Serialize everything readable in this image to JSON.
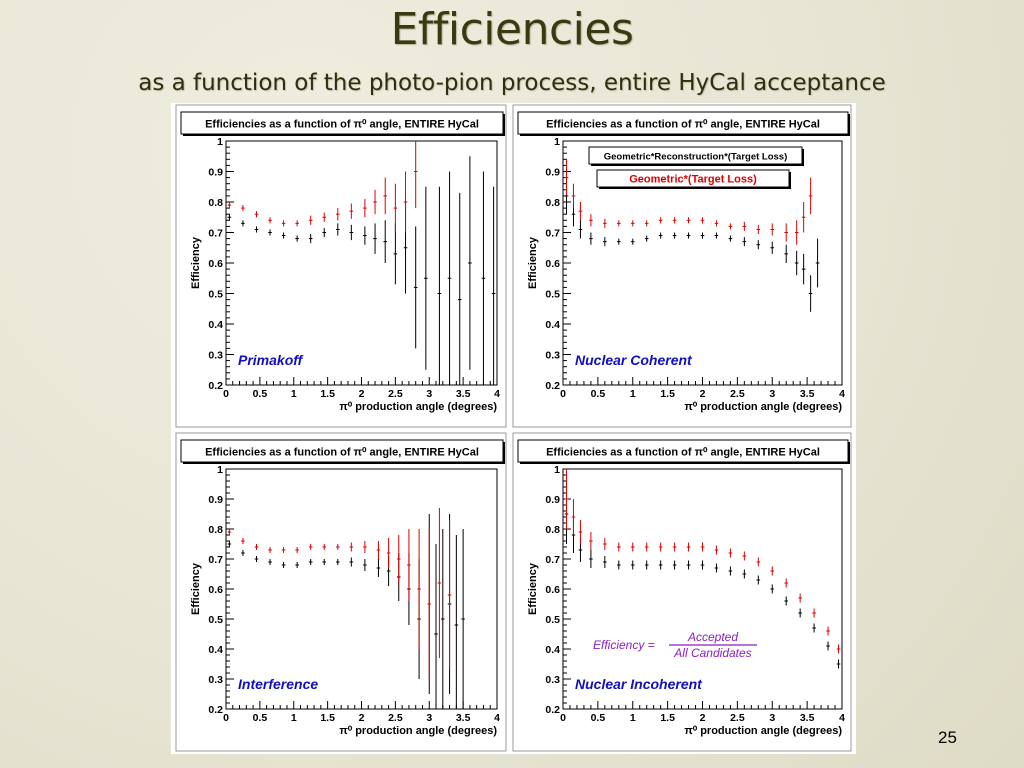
{
  "slide": {
    "title": "Efficiencies",
    "subtitle": "as a function of the photo-pion process, entire HyCal acceptance",
    "page_number": "25"
  },
  "colors": {
    "title_text": "#3a3a12",
    "background": "#e9e7d6",
    "series_black": "#000000",
    "series_red": "#e00000",
    "label_blue": "#1010c0",
    "formula_purple": "#8b1fc8"
  },
  "chart_data": [
    {
      "type": "scatter",
      "panel_title": "Efficiencies as a function of π⁰ angle, ENTIRE HyCal",
      "xlabel": "π⁰ production angle (degrees)",
      "ylabel": "Efficiency",
      "xlim": [
        0,
        4
      ],
      "ylim": [
        0.2,
        1
      ],
      "xticks": [
        "0",
        "0.5",
        "1",
        "1.5",
        "2",
        "2.5",
        "3",
        "3.5",
        "4"
      ],
      "yticks": [
        "0.2",
        "0.3",
        "0.4",
        "0.5",
        "0.6",
        "0.7",
        "0.8",
        "0.9",
        "1"
      ],
      "annotation": "Primakoff",
      "error_bars": true,
      "series": [
        {
          "color": "#000000",
          "x": [
            0.05,
            0.25,
            0.45,
            0.65,
            0.85,
            1.05,
            1.25,
            1.45,
            1.65,
            1.85,
            2.05,
            2.2,
            2.35,
            2.5,
            2.65,
            2.8,
            2.95,
            3.15,
            3.3,
            3.45,
            3.6,
            3.8,
            3.95
          ],
          "y": [
            0.75,
            0.73,
            0.71,
            0.7,
            0.69,
            0.68,
            0.68,
            0.7,
            0.71,
            0.7,
            0.69,
            0.68,
            0.67,
            0.63,
            0.65,
            0.52,
            0.55,
            0.5,
            0.55,
            0.48,
            0.6,
            0.55,
            0.5
          ],
          "err": [
            0.01,
            0.01,
            0.01,
            0.01,
            0.01,
            0.01,
            0.015,
            0.015,
            0.02,
            0.025,
            0.03,
            0.05,
            0.07,
            0.1,
            0.15,
            0.2,
            0.3,
            0.35,
            0.35,
            0.35,
            0.35,
            0.35,
            0.35
          ]
        },
        {
          "color": "#e00000",
          "x": [
            0.05,
            0.25,
            0.45,
            0.65,
            0.85,
            1.05,
            1.25,
            1.45,
            1.65,
            1.85,
            2.05,
            2.2,
            2.35,
            2.5,
            2.65,
            2.8
          ],
          "y": [
            0.79,
            0.78,
            0.76,
            0.74,
            0.73,
            0.73,
            0.74,
            0.75,
            0.76,
            0.77,
            0.78,
            0.8,
            0.82,
            0.78,
            0.8,
            0.9
          ],
          "err": [
            0.01,
            0.01,
            0.01,
            0.01,
            0.01,
            0.01,
            0.015,
            0.015,
            0.02,
            0.025,
            0.03,
            0.04,
            0.06,
            0.08,
            0.1,
            0.12
          ]
        }
      ]
    },
    {
      "type": "scatter",
      "panel_title": "Efficiencies as a function of π⁰ angle, ENTIRE HyCal",
      "xlabel": "π⁰ production angle (degrees)",
      "ylabel": "Efficiency",
      "xlim": [
        0,
        4
      ],
      "ylim": [
        0.2,
        1
      ],
      "xticks": [
        "0",
        "0.5",
        "1",
        "1.5",
        "2",
        "2.5",
        "3",
        "3.5",
        "4"
      ],
      "yticks": [
        "0.2",
        "0.3",
        "0.4",
        "0.5",
        "0.6",
        "0.7",
        "0.8",
        "0.9",
        "1"
      ],
      "annotation": "Nuclear Coherent",
      "error_bars": true,
      "legend": [
        "Geometric*Reconstruction*(Target Loss)",
        "Geometric*(Target Loss)"
      ],
      "series": [
        {
          "name": "Geometric*Reconstruction*(Target Loss)",
          "color": "#000000",
          "x": [
            0.05,
            0.15,
            0.25,
            0.4,
            0.6,
            0.8,
            1.0,
            1.2,
            1.4,
            1.6,
            1.8,
            2.0,
            2.2,
            2.4,
            2.6,
            2.8,
            3.0,
            3.2,
            3.35,
            3.45,
            3.55,
            3.65
          ],
          "y": [
            0.82,
            0.76,
            0.71,
            0.68,
            0.67,
            0.67,
            0.67,
            0.68,
            0.69,
            0.69,
            0.69,
            0.69,
            0.69,
            0.68,
            0.67,
            0.66,
            0.65,
            0.63,
            0.6,
            0.58,
            0.5,
            0.6
          ],
          "err": [
            0.06,
            0.04,
            0.03,
            0.02,
            0.015,
            0.01,
            0.01,
            0.01,
            0.01,
            0.01,
            0.01,
            0.01,
            0.01,
            0.01,
            0.015,
            0.015,
            0.02,
            0.03,
            0.04,
            0.05,
            0.06,
            0.08
          ]
        },
        {
          "name": "Geometric*(Target Loss)",
          "color": "#e00000",
          "x": [
            0.05,
            0.15,
            0.25,
            0.4,
            0.6,
            0.8,
            1.0,
            1.2,
            1.4,
            1.6,
            1.8,
            2.0,
            2.2,
            2.4,
            2.6,
            2.8,
            3.0,
            3.2,
            3.35,
            3.45,
            3.55
          ],
          "y": [
            0.88,
            0.82,
            0.77,
            0.74,
            0.73,
            0.73,
            0.73,
            0.73,
            0.74,
            0.74,
            0.74,
            0.74,
            0.73,
            0.72,
            0.72,
            0.71,
            0.71,
            0.7,
            0.7,
            0.75,
            0.82
          ],
          "err": [
            0.06,
            0.04,
            0.03,
            0.02,
            0.015,
            0.01,
            0.01,
            0.01,
            0.01,
            0.01,
            0.01,
            0.01,
            0.01,
            0.01,
            0.015,
            0.015,
            0.02,
            0.03,
            0.04,
            0.05,
            0.06
          ]
        }
      ]
    },
    {
      "type": "scatter",
      "panel_title": "Efficiencies as a function of π⁰ angle, ENTIRE HyCal",
      "xlabel": "π⁰ production angle (degrees)",
      "ylabel": "Efficiency",
      "xlim": [
        0,
        4
      ],
      "ylim": [
        0.2,
        1
      ],
      "xticks": [
        "0",
        "0.5",
        "1",
        "1.5",
        "2",
        "2.5",
        "3",
        "3.5",
        "4"
      ],
      "yticks": [
        "0.2",
        "0.3",
        "0.4",
        "0.5",
        "0.6",
        "0.7",
        "0.8",
        "0.9",
        "1"
      ],
      "annotation": "Interference",
      "error_bars": true,
      "series": [
        {
          "color": "#000000",
          "x": [
            0.05,
            0.25,
            0.45,
            0.65,
            0.85,
            1.05,
            1.25,
            1.45,
            1.65,
            1.85,
            2.05,
            2.25,
            2.4,
            2.55,
            2.7,
            2.85,
            3.0,
            3.1,
            3.2,
            3.3,
            3.4,
            3.5
          ],
          "y": [
            0.75,
            0.72,
            0.7,
            0.69,
            0.68,
            0.68,
            0.69,
            0.69,
            0.69,
            0.69,
            0.68,
            0.67,
            0.66,
            0.64,
            0.6,
            0.5,
            0.55,
            0.45,
            0.5,
            0.55,
            0.48,
            0.5
          ],
          "err": [
            0.01,
            0.01,
            0.01,
            0.01,
            0.01,
            0.01,
            0.01,
            0.01,
            0.01,
            0.015,
            0.02,
            0.03,
            0.05,
            0.08,
            0.12,
            0.2,
            0.3,
            0.3,
            0.3,
            0.3,
            0.3,
            0.3
          ]
        },
        {
          "color": "#e00000",
          "x": [
            0.05,
            0.25,
            0.45,
            0.65,
            0.85,
            1.05,
            1.25,
            1.45,
            1.65,
            1.85,
            2.05,
            2.25,
            2.4,
            2.55,
            2.7,
            2.85,
            3.0,
            3.15,
            3.3
          ],
          "y": [
            0.79,
            0.76,
            0.74,
            0.73,
            0.73,
            0.73,
            0.74,
            0.74,
            0.74,
            0.74,
            0.74,
            0.73,
            0.72,
            0.7,
            0.68,
            0.6,
            0.55,
            0.62,
            0.58
          ],
          "err": [
            0.01,
            0.01,
            0.01,
            0.01,
            0.01,
            0.01,
            0.01,
            0.01,
            0.01,
            0.015,
            0.02,
            0.03,
            0.05,
            0.08,
            0.12,
            0.2,
            0.25,
            0.25,
            0.25
          ]
        }
      ]
    },
    {
      "type": "scatter",
      "panel_title": "Efficiencies as a function of π⁰ angle, ENTIRE HyCal",
      "xlabel": "π⁰ production angle (degrees)",
      "ylabel": "Efficiency",
      "xlim": [
        0,
        4
      ],
      "ylim": [
        0.2,
        1
      ],
      "xticks": [
        "0",
        "0.5",
        "1",
        "1.5",
        "2",
        "2.5",
        "3",
        "3.5",
        "4"
      ],
      "yticks": [
        "0.2",
        "0.3",
        "0.4",
        "0.5",
        "0.6",
        "0.7",
        "0.8",
        "0.9",
        "1"
      ],
      "annotation": "Nuclear Incoherent",
      "formula": {
        "lhs": "Efficiency =",
        "numerator": "Accepted",
        "denominator": "All Candidates"
      },
      "error_bars": true,
      "series": [
        {
          "color": "#000000",
          "x": [
            0.05,
            0.15,
            0.25,
            0.4,
            0.6,
            0.8,
            1.0,
            1.2,
            1.4,
            1.6,
            1.8,
            2.0,
            2.2,
            2.4,
            2.6,
            2.8,
            3.0,
            3.2,
            3.4,
            3.6,
            3.8,
            3.95
          ],
          "y": [
            0.85,
            0.78,
            0.73,
            0.7,
            0.69,
            0.68,
            0.68,
            0.68,
            0.68,
            0.68,
            0.68,
            0.68,
            0.67,
            0.66,
            0.65,
            0.63,
            0.6,
            0.56,
            0.52,
            0.47,
            0.41,
            0.35
          ],
          "err": [
            0.1,
            0.06,
            0.04,
            0.03,
            0.02,
            0.015,
            0.015,
            0.015,
            0.015,
            0.015,
            0.015,
            0.015,
            0.015,
            0.015,
            0.015,
            0.015,
            0.015,
            0.015,
            0.015,
            0.015,
            0.015,
            0.015
          ]
        },
        {
          "color": "#e00000",
          "x": [
            0.05,
            0.15,
            0.25,
            0.4,
            0.6,
            0.8,
            1.0,
            1.2,
            1.4,
            1.6,
            1.8,
            2.0,
            2.2,
            2.4,
            2.6,
            2.8,
            3.0,
            3.2,
            3.4,
            3.6,
            3.8,
            3.95
          ],
          "y": [
            0.9,
            0.84,
            0.79,
            0.76,
            0.75,
            0.74,
            0.74,
            0.74,
            0.74,
            0.74,
            0.74,
            0.74,
            0.73,
            0.72,
            0.71,
            0.69,
            0.66,
            0.62,
            0.57,
            0.52,
            0.46,
            0.4
          ],
          "err": [
            0.1,
            0.06,
            0.04,
            0.03,
            0.02,
            0.015,
            0.015,
            0.015,
            0.015,
            0.015,
            0.015,
            0.015,
            0.015,
            0.015,
            0.015,
            0.015,
            0.015,
            0.015,
            0.015,
            0.015,
            0.015,
            0.015
          ]
        }
      ]
    }
  ]
}
